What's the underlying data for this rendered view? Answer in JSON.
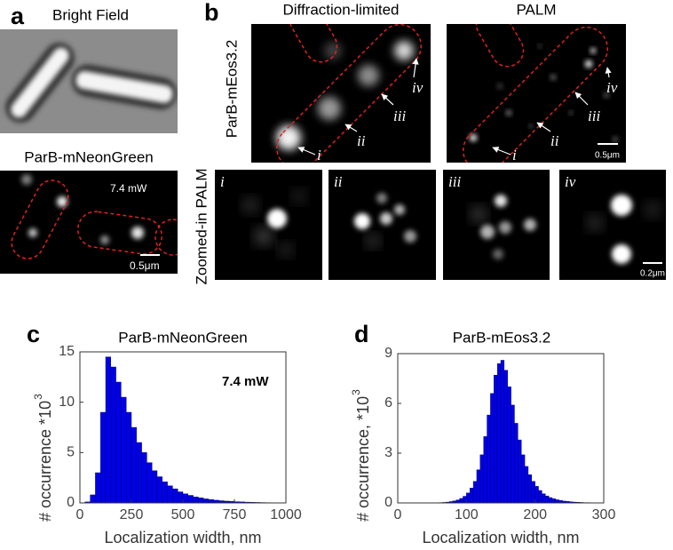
{
  "panels": {
    "a": {
      "letter": "a",
      "title": "Bright Field",
      "subtitle": "ParB-mNeonGreen",
      "power": "7.4 mW",
      "scale_bar": "0.5μm"
    },
    "b": {
      "letter": "b",
      "columns": [
        "Diffraction-limited",
        "PALM"
      ],
      "row_label": "ParB-mEos3.2",
      "zoom_label": "Zoomed-in PALM",
      "markers": [
        "i",
        "ii",
        "iii",
        "iv"
      ],
      "scale_bar_palm": "0.5μm",
      "scale_bar_zoom": "0.2μm"
    }
  },
  "chart_data": [
    {
      "type": "histogram",
      "letter": "c",
      "title": "ParB-mNeonGreen",
      "annotation": "7.4 mW",
      "xlabel": "Localization width, nm",
      "ylabel": "# occurrence *10",
      "ylabel_sup": "3",
      "bins": [
        0,
        25,
        50,
        75,
        100,
        125,
        150,
        175,
        200,
        225,
        250,
        275,
        300,
        325,
        350,
        375,
        400,
        425,
        450,
        475,
        500,
        525,
        550,
        575,
        600,
        625,
        650,
        675,
        700,
        725,
        750,
        775,
        800,
        825,
        850,
        875,
        900,
        925,
        950,
        975,
        1000
      ],
      "values": [
        0,
        0.1,
        0.8,
        3,
        9,
        14.5,
        13.5,
        12,
        10.5,
        9,
        7.5,
        6,
        5,
        4,
        3.2,
        2.6,
        2.1,
        1.7,
        1.4,
        1.1,
        0.9,
        0.75,
        0.6,
        0.5,
        0.4,
        0.33,
        0.27,
        0.22,
        0.18,
        0.15,
        0.12,
        0.1,
        0.08,
        0.06,
        0.05,
        0.04,
        0.03,
        0.02,
        0.02,
        0.01
      ],
      "color": "#0000e6",
      "xlim": [
        0,
        1000
      ],
      "ylim": [
        0,
        15
      ],
      "xticks": [
        0,
        250,
        500,
        750,
        1000
      ],
      "yticks": [
        0,
        5,
        10,
        15
      ]
    },
    {
      "type": "histogram",
      "letter": "d",
      "title": "ParB-mEos3.2",
      "xlabel": "Localization width, nm",
      "ylabel": "# occurrence, *10",
      "ylabel_sup": "3",
      "bins": [
        60,
        65,
        70,
        75,
        80,
        85,
        90,
        95,
        100,
        105,
        110,
        115,
        120,
        125,
        130,
        135,
        140,
        145,
        150,
        155,
        160,
        165,
        170,
        175,
        180,
        185,
        190,
        195,
        200,
        205,
        210,
        215,
        220,
        225,
        230,
        235,
        240,
        245,
        250,
        255,
        260,
        265,
        270,
        275,
        280,
        285,
        290,
        295,
        300
      ],
      "values": [
        0.02,
        0.03,
        0.05,
        0.08,
        0.12,
        0.18,
        0.27,
        0.4,
        0.6,
        0.9,
        1.3,
        2.0,
        2.9,
        4.0,
        5.3,
        6.6,
        7.7,
        8.4,
        8.6,
        8.0,
        7.0,
        5.9,
        4.8,
        3.8,
        2.9,
        2.2,
        1.7,
        1.3,
        1.0,
        0.75,
        0.55,
        0.42,
        0.32,
        0.25,
        0.19,
        0.15,
        0.11,
        0.09,
        0.07,
        0.05,
        0.04,
        0.03,
        0.02,
        0.02,
        0.01,
        0.01,
        0.01,
        0
      ],
      "color": "#0000e6",
      "xlim": [
        0,
        300
      ],
      "ylim": [
        0,
        9
      ],
      "xticks": [
        0,
        100,
        200,
        300
      ],
      "yticks": [
        0,
        3,
        6,
        9
      ]
    }
  ]
}
